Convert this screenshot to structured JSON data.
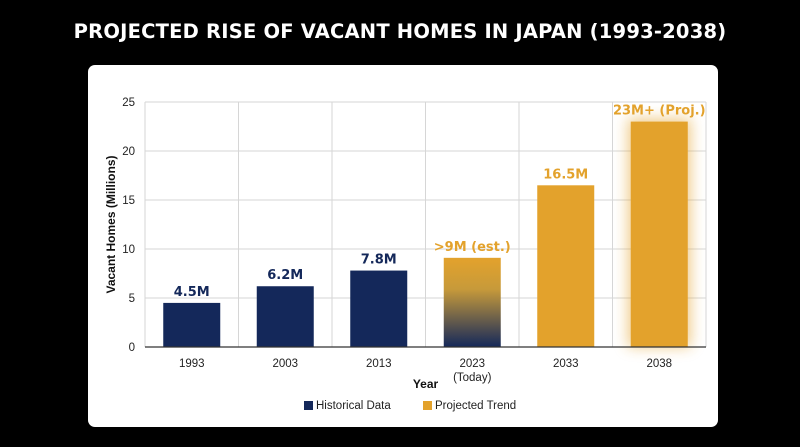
{
  "title": "PROJECTED RISE OF VACANT HOMES IN JAPAN (1993-2038)",
  "chart_data": {
    "type": "bar",
    "categories": [
      "1993",
      "2003",
      "2013",
      "2023",
      "2033",
      "2038"
    ],
    "category_sublabels": [
      "",
      "",
      "",
      "(Today)",
      "",
      ""
    ],
    "values": [
      4.5,
      6.2,
      7.8,
      9.1,
      16.5,
      23
    ],
    "data_labels": [
      "4.5M",
      "6.2M",
      "7.8M",
      ">9M (est.)",
      "16.5M",
      "23M+ (Proj.)"
    ],
    "series_type": [
      "historical",
      "historical",
      "historical",
      "transition",
      "projected",
      "projected"
    ],
    "xlabel": "Year",
    "ylabel": "Vacant Homes (Millions)",
    "ylim": [
      0,
      25
    ],
    "yticks": [
      0,
      5,
      10,
      15,
      20,
      25
    ],
    "grid": true,
    "legend": [
      {
        "name": "Historical Data",
        "color": "#14285a"
      },
      {
        "name": "Projected Trend",
        "color": "#e3a22c"
      }
    ],
    "legend_position": "bottom",
    "colors": {
      "historical": "#14285a",
      "projected": "#e3a22c"
    }
  }
}
